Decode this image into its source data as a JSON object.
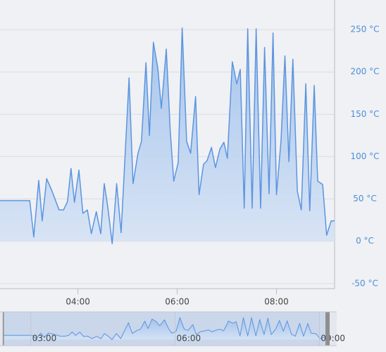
{
  "chart_data": {
    "type": "area",
    "x": [
      2.43,
      3.03,
      3.11,
      3.21,
      3.28,
      3.37,
      3.48,
      3.62,
      3.71,
      3.79,
      3.86,
      3.93,
      4.02,
      4.1,
      4.19,
      4.27,
      4.37,
      4.46,
      4.53,
      4.6,
      4.69,
      4.78,
      4.87,
      5.03,
      5.11,
      5.21,
      5.28,
      5.37,
      5.44,
      5.52,
      5.61,
      5.68,
      5.78,
      5.86,
      5.93,
      6.02,
      6.1,
      6.19,
      6.27,
      6.37,
      6.44,
      6.53,
      6.6,
      6.69,
      6.77,
      6.86,
      6.94,
      7.01,
      7.11,
      7.2,
      7.27,
      7.35,
      7.42,
      7.51,
      7.59,
      7.68,
      7.76,
      7.85,
      7.93,
      8.0,
      8.09,
      8.17,
      8.25,
      8.33,
      8.42,
      8.5,
      8.59,
      8.67,
      8.76,
      8.83,
      8.93,
      9.01,
      9.1,
      9.18
    ],
    "values": [
      48,
      48,
      5,
      72,
      24,
      74,
      59,
      37,
      37,
      47,
      86,
      46,
      84,
      33,
      37,
      9,
      35,
      9,
      68,
      41,
      -3,
      68,
      10,
      193,
      68,
      104,
      118,
      211,
      125,
      235,
      204,
      157,
      227,
      130,
      71,
      93,
      252,
      118,
      104,
      171,
      55,
      91,
      95,
      111,
      87,
      109,
      117,
      98,
      212,
      186,
      203,
      39,
      251,
      39,
      251,
      39,
      229,
      56,
      246,
      55,
      118,
      219,
      94,
      215,
      59,
      37,
      186,
      36,
      184,
      71,
      67,
      7,
      24,
      24
    ],
    "color": "#5b95e0",
    "xlim": [
      2.43,
      9.17
    ],
    "ylim": [
      -56,
      285
    ],
    "xticks": [
      {
        "value": 4,
        "label": "04:00"
      },
      {
        "value": 6,
        "label": "06:00"
      },
      {
        "value": 8,
        "label": "08:00"
      }
    ],
    "yticks": [
      {
        "value": -50,
        "label": "-50 °C"
      },
      {
        "value": 0,
        "label": "0 °C"
      },
      {
        "value": 50,
        "label": "50 °C"
      },
      {
        "value": 100,
        "label": "100 °C"
      },
      {
        "value": 150,
        "label": "150 °C"
      },
      {
        "value": 200,
        "label": "200 °C"
      },
      {
        "value": 250,
        "label": "250 °C"
      }
    ],
    "grid": true,
    "navigator": {
      "xlim": [
        2.36,
        9.36
      ],
      "xticks": [
        {
          "value": 3,
          "label": "03:00"
        },
        {
          "value": 6,
          "label": "06:00"
        },
        {
          "value": 9,
          "label": "09:00"
        }
      ]
    }
  }
}
